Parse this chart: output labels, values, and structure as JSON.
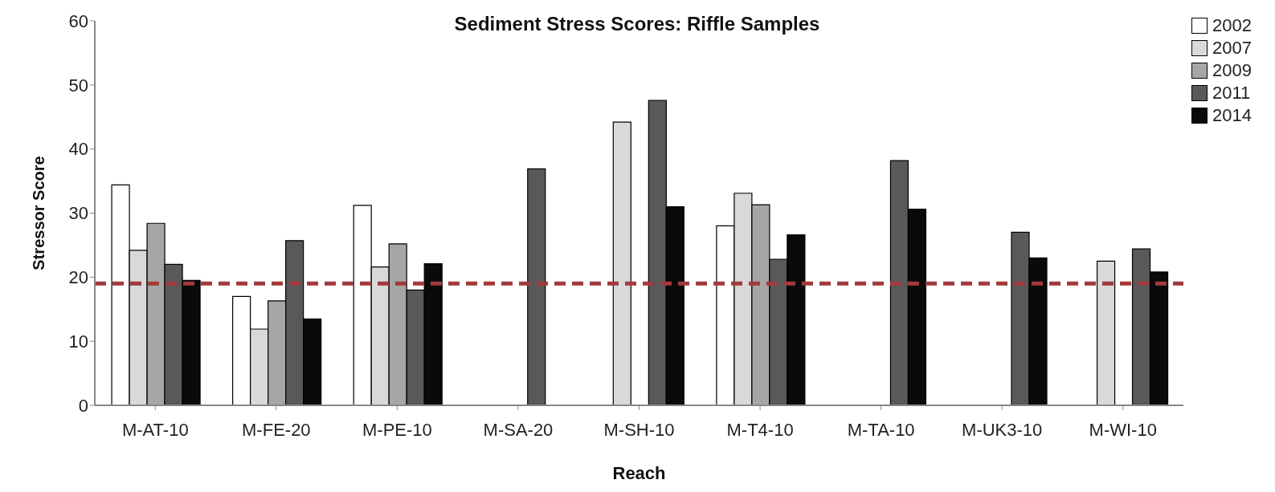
{
  "chart_data": {
    "type": "bar",
    "title": "Sediment Stress Scores: Riffle Samples",
    "xlabel": "Reach",
    "ylabel": "Stressor Score",
    "categories": [
      "M-AT-10",
      "M-FE-20",
      "M-PE-10",
      "M-SA-20",
      "M-SH-10",
      "M-T4-10",
      "M-TA-10",
      "M-UK3-10",
      "M-WI-10"
    ],
    "series": [
      {
        "name": "2002",
        "color": "#ffffff",
        "values": [
          34.4,
          17.0,
          31.2,
          null,
          null,
          28.0,
          null,
          null,
          null
        ]
      },
      {
        "name": "2007",
        "color": "#d9d9d9",
        "values": [
          24.2,
          11.9,
          21.6,
          null,
          44.2,
          33.1,
          null,
          null,
          22.5
        ]
      },
      {
        "name": "2009",
        "color": "#a6a6a6",
        "values": [
          28.4,
          16.3,
          25.2,
          null,
          null,
          31.3,
          null,
          null,
          null
        ]
      },
      {
        "name": "2011",
        "color": "#595959",
        "values": [
          22.0,
          25.7,
          18.0,
          36.9,
          47.6,
          22.8,
          38.2,
          27.0,
          24.4
        ]
      },
      {
        "name": "2014",
        "color": "#0a0a0a",
        "values": [
          19.5,
          13.5,
          22.1,
          null,
          31.0,
          26.6,
          30.6,
          23.0,
          20.8
        ]
      }
    ],
    "ylim": [
      0,
      60
    ],
    "yticks": [
      0,
      10,
      20,
      30,
      40,
      50,
      60
    ],
    "grid": false,
    "legend": "top right",
    "ref_lines": [
      {
        "axis": "y",
        "value": 19,
        "color": "#a33a3a",
        "line_style": "dashed"
      }
    ]
  }
}
